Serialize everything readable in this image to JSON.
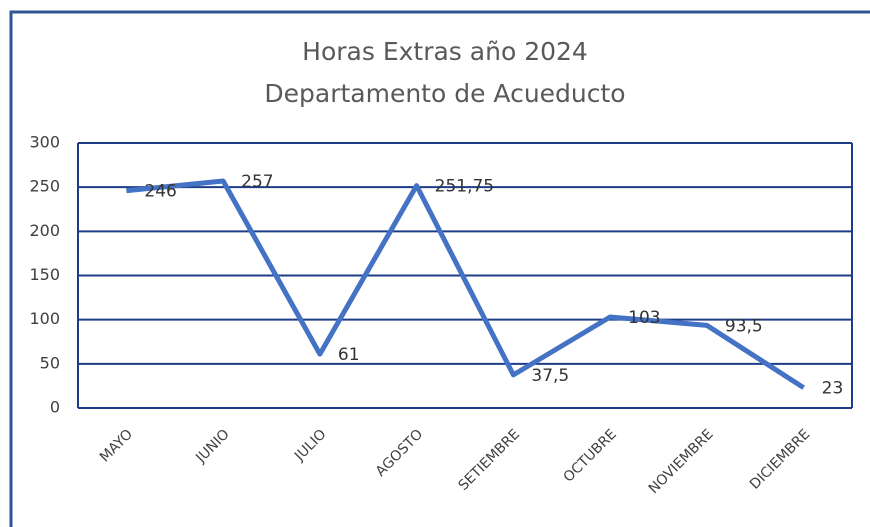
{
  "chart_data": {
    "type": "line",
    "title": "Horas Extras año 2024",
    "subtitle": "Departamento de Acueducto",
    "categories": [
      "MAYO",
      "JUNIO",
      "JULIO",
      "AGOSTO",
      "SETIEMBRE",
      "OCTUBRE",
      "NOVIEMBRE",
      "DICIEMBRE"
    ],
    "series": [
      {
        "name": "Horas Extras",
        "color": "#4472c4",
        "values": [
          246,
          257,
          61,
          251.75,
          37.5,
          103,
          93.5,
          23
        ],
        "value_labels": [
          "246",
          "257",
          "61",
          "251,75",
          "37,5",
          "103",
          "93,5",
          "23"
        ]
      }
    ],
    "ylim": [
      0,
      300
    ],
    "yticks": [
      0,
      50,
      100,
      150,
      200,
      250,
      300
    ],
    "grid": true
  }
}
